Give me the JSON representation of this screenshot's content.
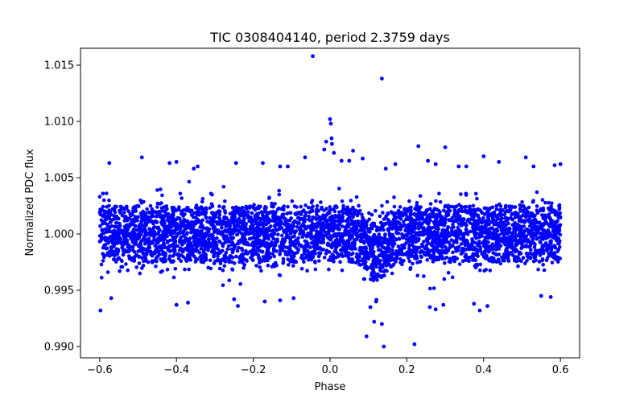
{
  "chart_data": {
    "type": "scatter",
    "title": "TIC 0308404140, period 2.3759 days",
    "xlabel": "Phase",
    "ylabel": "Normalized PDC flux",
    "xlim": [
      -0.65,
      0.65
    ],
    "ylim": [
      0.989,
      1.0165
    ],
    "grid": false,
    "x_ticks": [
      -0.6,
      -0.4,
      -0.2,
      0.0,
      0.2,
      0.4,
      0.6
    ],
    "x_tick_labels": [
      "−0.6",
      "−0.4",
      "−0.2",
      "0.0",
      "0.2",
      "0.4",
      "0.6"
    ],
    "y_ticks": [
      0.99,
      0.995,
      1.0,
      1.005,
      1.01,
      1.015
    ],
    "y_tick_labels": [
      "0.990",
      "0.995",
      "1.000",
      "1.005",
      "1.010",
      "1.015"
    ],
    "series": [
      {
        "name": "PDC flux",
        "color": "#0000ff",
        "marker": "circle",
        "band": {
          "x_range": [
            -0.6,
            0.6
          ],
          "dense_core": [
            0.9975,
            1.0025
          ],
          "typical_spread": [
            0.9955,
            1.0045
          ]
        },
        "transit_dip": {
          "center_phase": 0.12,
          "width_phase": 0.05,
          "depth": 0.0015
        },
        "x": [
          -0.045,
          0.135,
          0.0,
          0.002,
          0.004,
          -0.01,
          0.005,
          -0.015,
          0.01,
          0.06,
          0.085,
          -0.065,
          -0.575,
          -0.49,
          -0.418,
          -0.4,
          -0.355,
          -0.345,
          -0.245,
          -0.175,
          -0.13,
          -0.11,
          0.03,
          0.05,
          0.145,
          0.17,
          0.23,
          0.255,
          0.275,
          0.3,
          0.335,
          0.355,
          0.4,
          0.44,
          0.51,
          0.53,
          0.585,
          0.6,
          0.22,
          0.26,
          0.095,
          0.14,
          0.135,
          0.115,
          0.12,
          0.105,
          -0.598,
          -0.57,
          -0.4,
          -0.37,
          -0.25,
          -0.24,
          -0.17,
          -0.13,
          0.275,
          0.295,
          0.375,
          0.39,
          0.41,
          0.55,
          0.575,
          -0.095
        ],
        "y": [
          1.0158,
          1.0138,
          1.0102,
          1.0098,
          1.0085,
          1.0082,
          1.008,
          1.0075,
          1.0072,
          1.0074,
          1.0067,
          1.0068,
          1.0063,
          1.0068,
          1.0063,
          1.0064,
          1.0058,
          1.006,
          1.0063,
          1.0063,
          1.006,
          1.006,
          1.0065,
          1.0065,
          1.0058,
          1.0062,
          1.0078,
          1.0065,
          1.0062,
          1.0077,
          1.006,
          1.006,
          1.0069,
          1.0064,
          1.0068,
          1.006,
          1.0061,
          1.0062,
          0.9902,
          0.9935,
          0.9909,
          0.99,
          0.992,
          0.9922,
          0.994,
          0.9935,
          0.9932,
          0.9943,
          0.9937,
          0.9939,
          0.9942,
          0.9936,
          0.994,
          0.9941,
          0.9933,
          0.9937,
          0.9938,
          0.9932,
          0.9936,
          0.9945,
          0.9944,
          0.9943
        ]
      }
    ]
  }
}
